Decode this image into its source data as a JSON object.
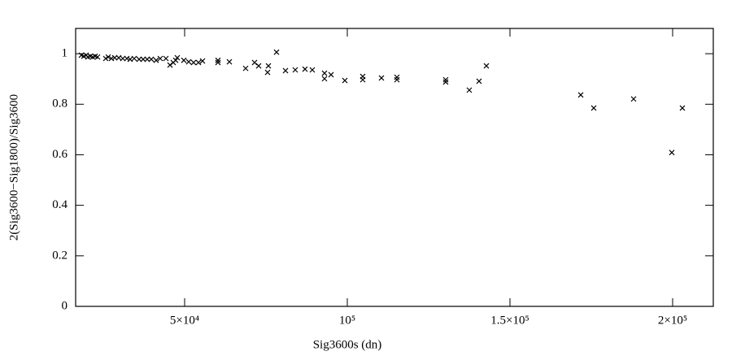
{
  "chart_data": {
    "type": "scatter",
    "xlabel": "Sig3600s (dn)",
    "ylabel": "2(Sig3600−Sig1800)/Sig3600",
    "x": [
      18250,
      19000,
      19750,
      20250,
      21000,
      21750,
      22500,
      23250,
      25750,
      26500,
      27500,
      28500,
      29750,
      31000,
      32250,
      33250,
      34500,
      36000,
      37250,
      38500,
      39750,
      41250,
      42500,
      44250,
      45500,
      46500,
      47250,
      47750,
      49750,
      51250,
      52750,
      54250,
      55500,
      60250,
      60250,
      63750,
      68750,
      71500,
      72750,
      75750,
      75500,
      78250,
      81000,
      84000,
      87000,
      89250,
      93000,
      93000,
      95000,
      99250,
      104750,
      104750,
      110500,
      115250,
      115250,
      130250,
      130250,
      137500,
      140500,
      142750,
      171750,
      175750,
      188000,
      199750,
      203000
    ],
    "values": [
      0.994,
      0.99,
      0.994,
      0.987,
      0.99,
      0.987,
      0.99,
      0.987,
      0.981,
      0.987,
      0.981,
      0.984,
      0.984,
      0.981,
      0.981,
      0.978,
      0.981,
      0.978,
      0.978,
      0.978,
      0.978,
      0.974,
      0.981,
      0.981,
      0.955,
      0.965,
      0.974,
      0.984,
      0.974,
      0.968,
      0.965,
      0.965,
      0.971,
      0.965,
      0.974,
      0.968,
      0.942,
      0.965,
      0.952,
      0.952,
      0.926,
      1.006,
      0.933,
      0.936,
      0.939,
      0.936,
      0.923,
      0.901,
      0.917,
      0.894,
      0.91,
      0.897,
      0.904,
      0.897,
      0.907,
      0.897,
      0.888,
      0.856,
      0.891,
      0.952,
      0.837,
      0.785,
      0.821,
      0.609,
      0.785
    ],
    "color": "#000000",
    "xlim": [
      16500,
      212500
    ],
    "ylim": [
      0,
      1.1
    ],
    "xticks": [
      {
        "value": 50000,
        "label": "5×10⁴"
      },
      {
        "value": 100000,
        "label": "10⁵"
      },
      {
        "value": 150000,
        "label": "1.5×10⁵"
      },
      {
        "value": 200000,
        "label": "2×10⁵"
      }
    ],
    "yticks": [
      0,
      0.2,
      0.4,
      0.6,
      0.8,
      1
    ]
  }
}
